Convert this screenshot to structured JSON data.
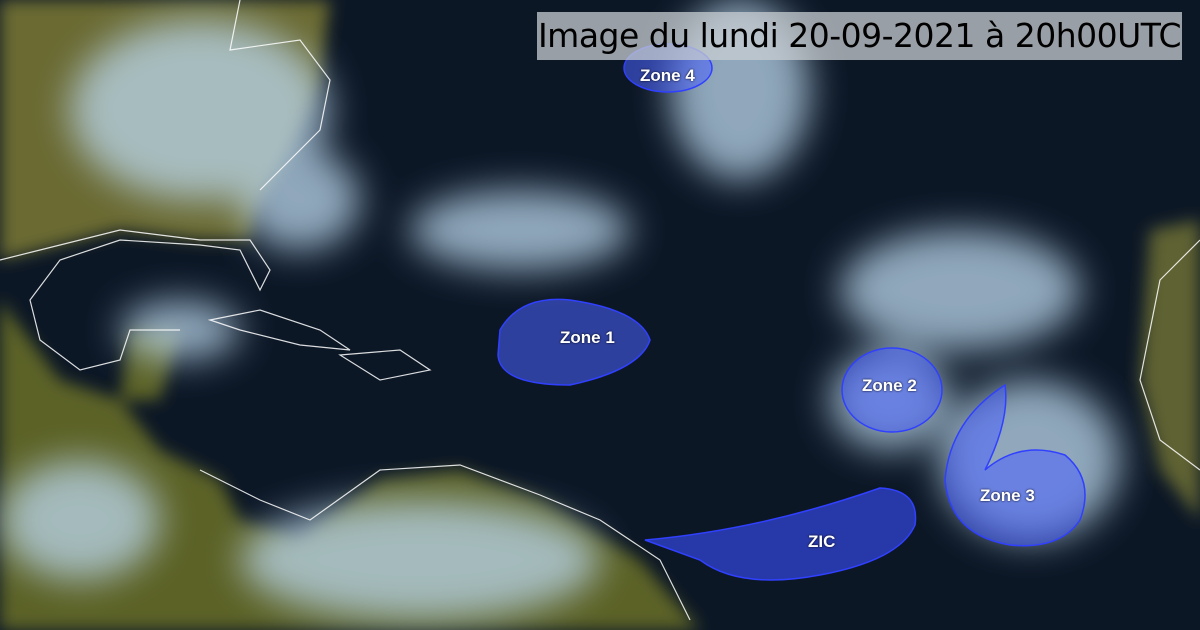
{
  "title": "Image du lundi 20-09-2021 à 20h00UTC",
  "zones": [
    {
      "label": "Zone 1"
    },
    {
      "label": "Zone 2"
    },
    {
      "label": "Zone 3"
    },
    {
      "label": "Zone 4"
    },
    {
      "label": "ZIC"
    }
  ],
  "colors": {
    "ocean": "#0b1422",
    "zone_fill": "#4a62ff",
    "land": "#6b6a2c",
    "cloud": "#bcd8ee"
  }
}
